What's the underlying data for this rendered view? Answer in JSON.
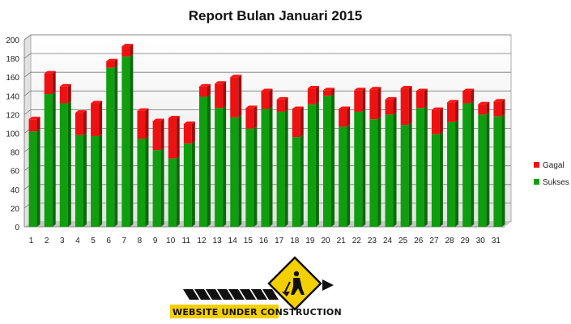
{
  "chart_data": {
    "type": "bar",
    "stacked": true,
    "title": "Report Bulan Januari 2015",
    "categories": [
      "1",
      "2",
      "3",
      "4",
      "5",
      "6",
      "7",
      "8",
      "9",
      "10",
      "11",
      "12",
      "13",
      "14",
      "15",
      "16",
      "17",
      "18",
      "19",
      "20",
      "21",
      "22",
      "23",
      "24",
      "25",
      "26",
      "27",
      "28",
      "29",
      "30",
      "31"
    ],
    "series": [
      {
        "name": "Sukses",
        "color": "#0e9e0e",
        "values": [
          102,
          142,
          132,
          98,
          97,
          170,
          182,
          94,
          82,
          73,
          89,
          139,
          127,
          117,
          105,
          126,
          123,
          96,
          131,
          140,
          107,
          123,
          115,
          120,
          109,
          127,
          99,
          112,
          132,
          120,
          118
        ]
      },
      {
        "name": "Gagal",
        "color": "#ee1111",
        "values": [
          13,
          22,
          18,
          24,
          35,
          7,
          11,
          30,
          31,
          43,
          21,
          11,
          26,
          43,
          22,
          19,
          13,
          30,
          17,
          6,
          19,
          23,
          32,
          16,
          39,
          18,
          26,
          21,
          13,
          11,
          16
        ]
      }
    ],
    "yticks": [
      "0",
      "20",
      "40",
      "60",
      "80",
      "100",
      "120",
      "140",
      "160",
      "180",
      "200"
    ],
    "ylim": [
      0,
      200
    ],
    "grid": true,
    "legend_position": "right"
  },
  "banner": {
    "text": "WEBSITE UNDER CONSTRUCTION",
    "icon": "under-construction-sign-icon"
  }
}
